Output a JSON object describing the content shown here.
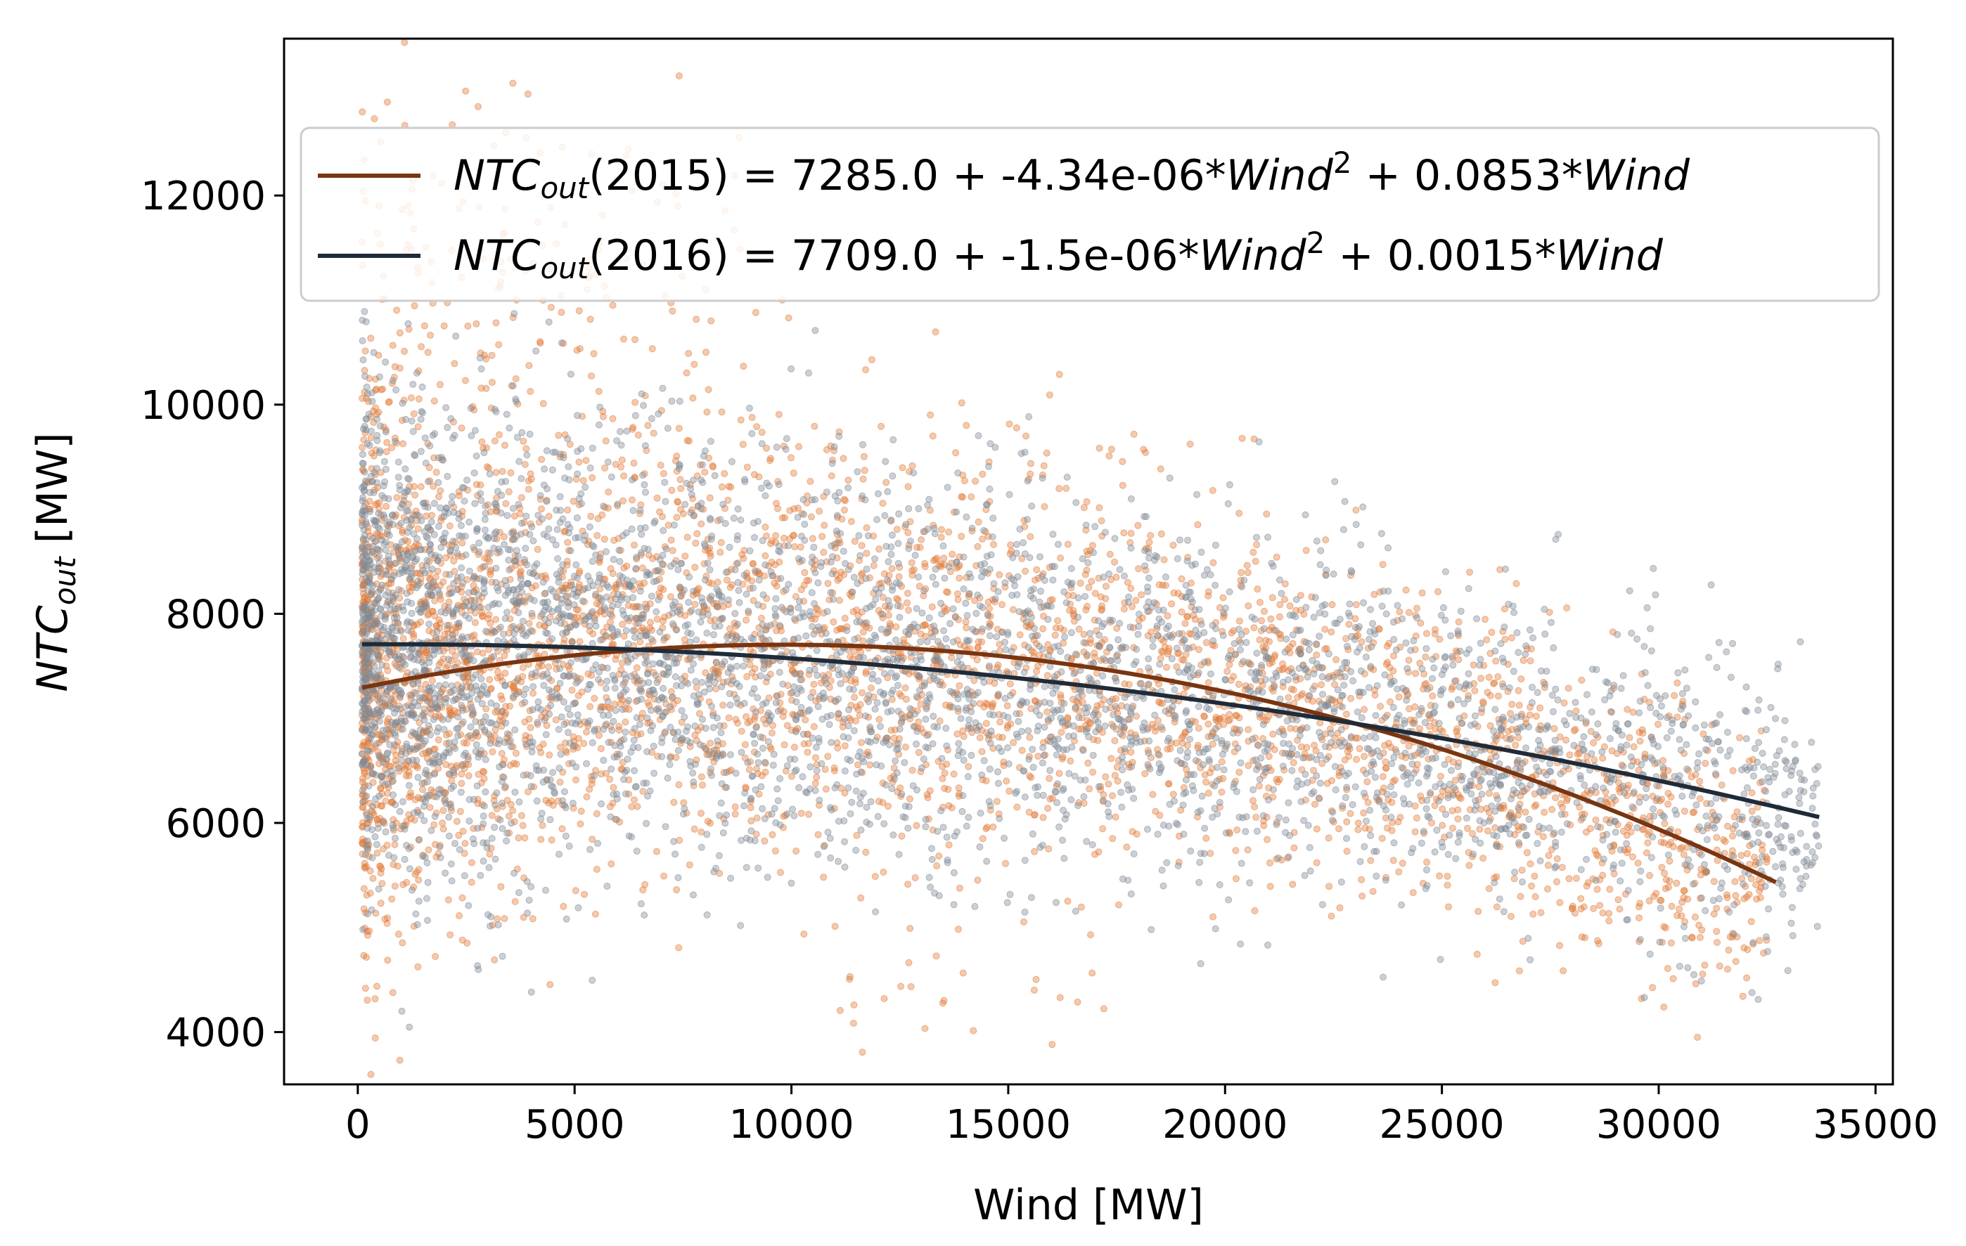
{
  "chart_data": {
    "type": "scatter",
    "title": "",
    "xlabel": "Wind [MW]",
    "ylabel": {
      "main": "NTC",
      "sub": "out",
      "unit": " [MW]"
    },
    "xlim": [
      -1700,
      35400
    ],
    "ylim": [
      3500,
      13500
    ],
    "xticks": [
      0,
      5000,
      10000,
      15000,
      20000,
      25000,
      30000,
      35000
    ],
    "xtick_labels": [
      "0",
      "5000",
      "10000",
      "15000",
      "20000",
      "25000",
      "30000",
      "35000"
    ],
    "yticks": [
      4000,
      6000,
      8000,
      10000,
      12000
    ],
    "ytick_labels": [
      "4000",
      "6000",
      "8000",
      "10000",
      "12000"
    ],
    "grid": false,
    "legend_position": "top",
    "series": [
      {
        "name": "2015",
        "kind": "scatter",
        "color": "#E07B39",
        "point_count": 4200,
        "x_range": [
          100,
          32500
        ],
        "density_note": "dense cloud between 6000 and 9500 MW NTC at low wind, thinning toward high wind"
      },
      {
        "name": "2016",
        "kind": "scatter",
        "color": "#7F8A96",
        "point_count": 4200,
        "x_range": [
          100,
          33700
        ],
        "density_note": "dense cloud between 6000 and 9000 MW NTC at low wind, thinning toward high wind"
      },
      {
        "name": "2015 fit",
        "kind": "line",
        "color": "#7A3510",
        "x_range": [
          100,
          32700
        ],
        "coefficients": {
          "intercept": 7285.0,
          "quadratic": -4.34e-06,
          "linear": 0.0853
        }
      },
      {
        "name": "2016 fit",
        "kind": "line",
        "color": "#1F2B38",
        "x_range": [
          100,
          33700
        ],
        "coefficients": {
          "intercept": 7709.0,
          "quadratic": -1.5e-06,
          "linear": 0.0015
        }
      }
    ],
    "legend": [
      {
        "color": "#7A3510",
        "ntc": "NTC",
        "sub": "out",
        "year": "(2015)",
        "eq_a": " = 7285.0 + -4.34e-06*",
        "wind1": "Wind",
        "sup": "2",
        "eq_b": " + 0.0853*",
        "wind2": "Wind"
      },
      {
        "color": "#1F2B38",
        "ntc": "NTC",
        "sub": "out",
        "year": "(2016)",
        "eq_a": " = 7709.0 + -1.5e-06*",
        "wind1": "Wind",
        "sup": "2",
        "eq_b": " + 0.0015*",
        "wind2": "Wind"
      }
    ]
  }
}
